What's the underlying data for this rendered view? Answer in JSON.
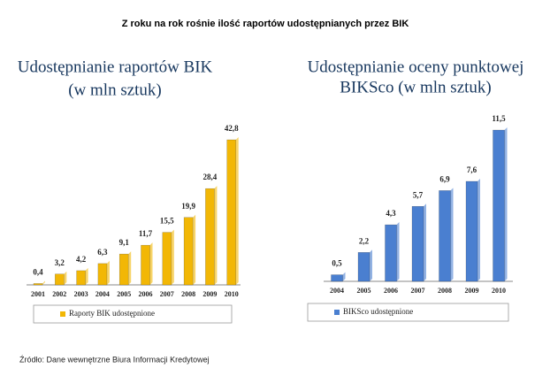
{
  "title": "Z roku na rok rośnie ilość raportów udostępnianych przez BIK",
  "chart_data": [
    {
      "type": "bar",
      "title": "Udostępnianie raportów BIK",
      "subtitle": "(w mln sztuk)",
      "categories": [
        "2001",
        "2002",
        "2003",
        "2004",
        "2005",
        "2006",
        "2007",
        "2008",
        "2009",
        "2010"
      ],
      "series": [
        {
          "name": "Raporty BIK udostępnione",
          "color": "#f2b705",
          "values": [
            0.4,
            3.2,
            4.2,
            6.3,
            9.1,
            11.7,
            15.5,
            19.9,
            28.4,
            42.8
          ],
          "value_labels": [
            "0,4",
            "3,2",
            "4,2",
            "6,3",
            "9,1",
            "11,7",
            "15,5",
            "19,9",
            "28,4",
            "42,8"
          ]
        }
      ],
      "legend": "bottom"
    },
    {
      "type": "bar",
      "title": "Udostępnianie oceny punktowej",
      "subtitle": "BIKSco  (w mln sztuk)",
      "categories": [
        "2004",
        "2005",
        "2006",
        "2007",
        "2008",
        "2009",
        "2010"
      ],
      "series": [
        {
          "name": "BIKSco udostępnione",
          "color": "#4a7fd0",
          "values": [
            0.5,
            2.2,
            4.3,
            5.7,
            6.9,
            7.6,
            11.5
          ],
          "value_labels": [
            "0,5",
            "2,2",
            "4,3",
            "5,7",
            "6,9",
            "7,6",
            "11,5"
          ]
        }
      ],
      "legend": "bottom"
    }
  ],
  "source": "Źródło: Dane wewnętrzne Biura Informacji Kredytowej"
}
